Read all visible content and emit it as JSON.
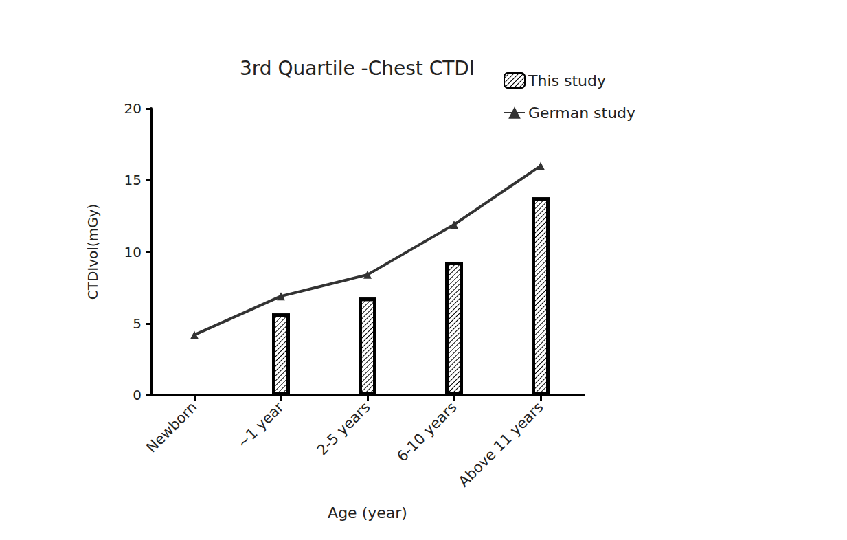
{
  "chart_data": {
    "type": "bar",
    "title": "3rd Quartile -Chest CTDI",
    "x_label": "Age (year)",
    "y_label": "CTDIvol(mGy)",
    "categories": [
      "Newborn",
      "~1 year",
      "2-5 years",
      "6-10 years",
      "Above 11 years"
    ],
    "series": [
      {
        "name": "This study",
        "type": "bar",
        "color": "#000000",
        "values": [
          null,
          5.7,
          6.8,
          9.3,
          13.8
        ]
      },
      {
        "name": "German study",
        "type": "line",
        "color": "#333333",
        "marker": "triangle",
        "line_style": "solid",
        "values": [
          4.2,
          6.9,
          8.4,
          11.9,
          16.0
        ]
      }
    ],
    "ylim": [
      0,
      20
    ],
    "yticks": [
      0,
      5,
      10,
      15,
      20
    ],
    "grid": false,
    "legend": "upper right"
  }
}
